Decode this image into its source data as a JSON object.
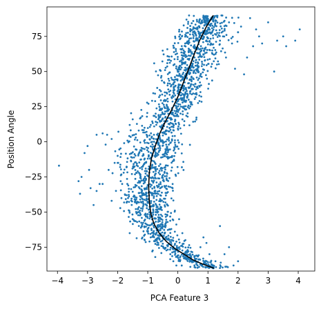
{
  "chart_data": {
    "type": "scatter",
    "title": "",
    "xlabel": "PCA Feature 3",
    "ylabel": "Position Angle",
    "xlim": [
      -4.35,
      4.55
    ],
    "ylim": [
      -92,
      96
    ],
    "x_ticks": [
      -4,
      -3,
      -2,
      -1,
      0,
      1,
      2,
      3,
      4
    ],
    "x_tick_labels": [
      "−4",
      "−3",
      "−2",
      "−1",
      "0",
      "1",
      "2",
      "3",
      "4"
    ],
    "y_ticks": [
      -75,
      -50,
      -25,
      0,
      25,
      50,
      75
    ],
    "y_tick_labels": [
      "−75",
      "−50",
      "−25",
      "0",
      "25",
      "50",
      "75"
    ],
    "grid": false,
    "legend": "none",
    "colors": {
      "points": "#1f77b4",
      "fit_line": "#000000"
    },
    "series": [
      {
        "kind": "points",
        "description_count": "approx. 2000 points",
        "x": [
          -3.95,
          -3.3,
          -3.2,
          -3.1,
          -3.0,
          -2.9,
          -2.8,
          -2.7,
          -2.6,
          -2.5,
          -2.35,
          -2.3,
          -2.2,
          -2.1,
          -2.0,
          -1.9,
          -1.8,
          -1.7,
          -1.6,
          -1.5,
          -1.4,
          -1.3,
          -1.2,
          -1.1,
          -1.0,
          -0.9,
          -0.8,
          -0.7,
          -0.6,
          -0.5,
          -0.4,
          -0.3,
          -0.2,
          -0.1,
          0.0,
          0.1,
          0.2,
          0.3,
          0.4,
          0.5,
          0.6,
          0.7,
          0.8,
          0.9,
          1.0,
          1.1,
          1.2,
          1.3,
          1.4,
          1.5,
          1.6,
          1.7,
          1.8,
          1.9,
          2.0,
          2.1,
          2.2,
          2.3,
          2.4,
          2.5,
          2.6,
          2.7,
          2.8,
          3.0,
          3.2,
          3.3,
          3.5,
          3.6,
          3.9,
          4.05,
          -3.25,
          -2.95,
          -2.7,
          -2.5,
          -2.4,
          -2.2,
          -2.0,
          -1.85,
          -1.6,
          -1.5,
          -1.3,
          -1.2,
          -1.1,
          -1.0,
          -0.85,
          -0.75,
          -0.65,
          -0.55,
          -0.45,
          -0.35,
          -0.25,
          -0.15,
          -0.05,
          0.05,
          0.15,
          0.25,
          0.35,
          0.45,
          0.55,
          0.65,
          0.75,
          0.85,
          0.95,
          1.05,
          1.15,
          1.25,
          1.4,
          1.55,
          1.7,
          1.85,
          2.0
        ],
        "y": [
          -17,
          -28,
          -25,
          -8,
          -3,
          -33,
          -45,
          5,
          -30,
          6,
          5,
          -20,
          -42,
          -15,
          -10,
          -28,
          -22,
          -38,
          12,
          16,
          3,
          8,
          -18,
          -52,
          -12,
          12,
          -40,
          -10,
          15,
          20,
          8,
          -2,
          16,
          22,
          30,
          35,
          40,
          45,
          52,
          60,
          72,
          78,
          85,
          88,
          80,
          70,
          62,
          55,
          72,
          75,
          60,
          85,
          70,
          52,
          78,
          82,
          48,
          60,
          88,
          68,
          80,
          75,
          70,
          85,
          50,
          72,
          75,
          68,
          72,
          80,
          -37,
          -20,
          -35,
          -30,
          -2,
          2,
          -15,
          -30,
          -65,
          -55,
          -50,
          -60,
          -70,
          -62,
          -78,
          -82,
          -72,
          -55,
          -60,
          -45,
          -80,
          -85,
          -88,
          -75,
          -65,
          -70,
          -78,
          -85,
          -82,
          -88,
          -75,
          -68,
          -72,
          -80,
          -88,
          -85,
          -60,
          -80,
          -75,
          -88,
          -85
        ]
      },
      {
        "kind": "fit_line",
        "x": [
          1.18,
          0.95,
          0.72,
          0.45,
          0.2,
          0.0,
          -0.2,
          -0.4,
          -0.6,
          -0.75,
          -0.88,
          -0.95,
          -0.97,
          -0.95,
          -0.9,
          -0.8,
          -0.62,
          -0.38,
          -0.1,
          0.2,
          0.5,
          0.82,
          1.2
        ],
        "y": [
          90,
          82,
          72,
          57,
          43,
          32,
          23,
          15,
          6,
          -3,
          -12,
          -22,
          -32,
          -42,
          -51,
          -58,
          -65,
          -71,
          -76,
          -80,
          -84,
          -87,
          -90
        ]
      }
    ]
  }
}
